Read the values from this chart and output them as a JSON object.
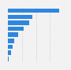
{
  "values": [
    22000,
    10500,
    9200,
    6800,
    4500,
    2800,
    1900,
    1200,
    500
  ],
  "bar_color": "#2e86de",
  "background_color": "#f2f2f2",
  "plot_bg_color": "#f2f2f2",
  "right_panel_color": "#f2f2f2",
  "xlim_max": 24000,
  "bar_height": 0.72,
  "grid_color": "#cccccc",
  "grid_linewidth": 0.4
}
